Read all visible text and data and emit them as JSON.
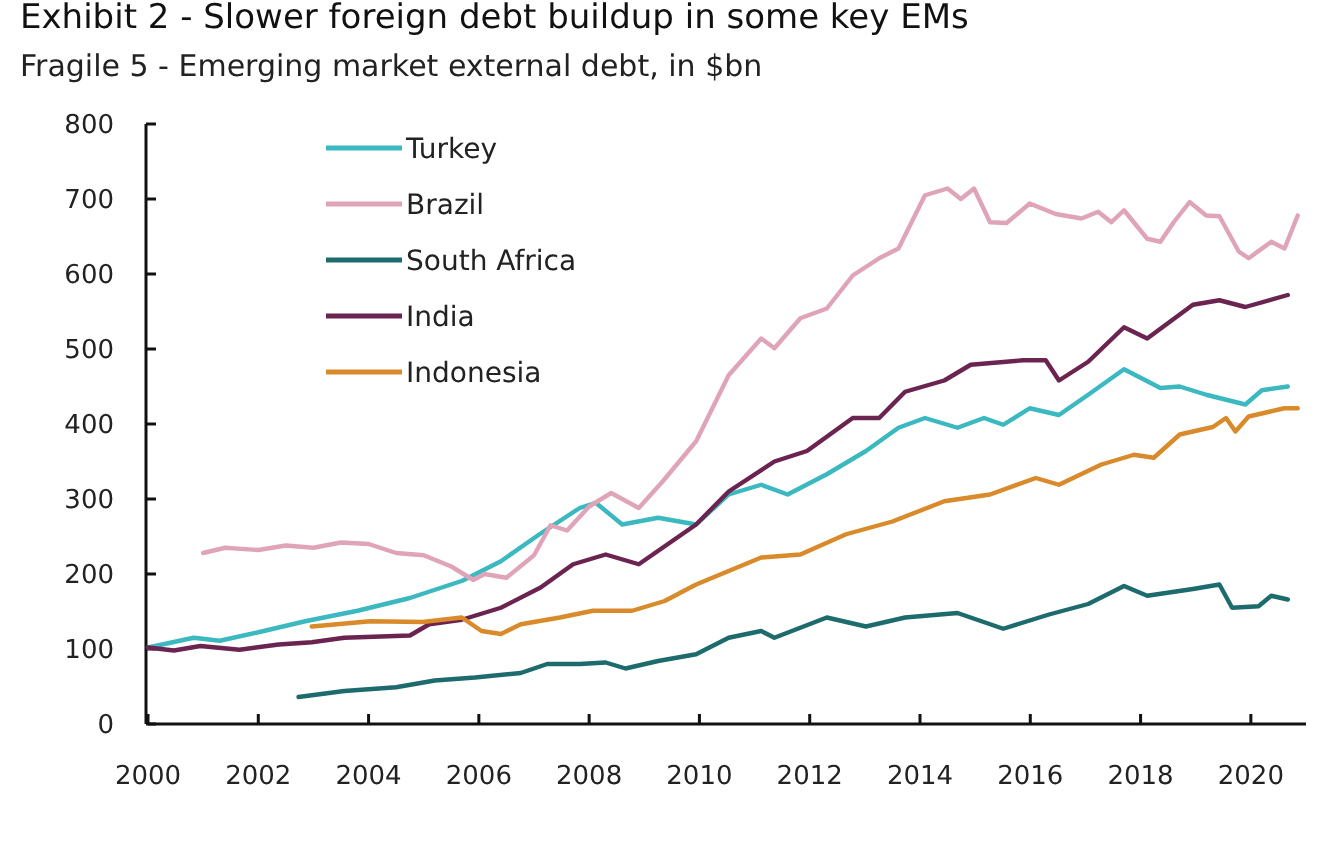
{
  "chart_data": {
    "type": "line",
    "title": "Exhibit 2 - Slower foreign debt buildup in some key EMs",
    "subtitle": "Fragile 5 - Emerging market external debt, in $bn",
    "xlim": [
      2000,
      2021
    ],
    "xticks": [
      2000,
      2002,
      2004,
      2006,
      2008,
      2010,
      2012,
      2014,
      2016,
      2018,
      2020
    ],
    "ylim": [
      0,
      800
    ],
    "yticks": [
      0,
      100,
      200,
      300,
      400,
      500,
      600,
      700,
      800
    ],
    "grid": false,
    "legend": "top left",
    "series": [
      {
        "name": "Turkey",
        "color": "#3bb8c0",
        "x": [
          2000,
          2000.83,
          2001.3,
          2002.1,
          2002.85,
          2003.8,
          2004.75,
          2005.7,
          2006.4,
          2007.1,
          2007.83,
          2008.12,
          2008.6,
          2009.25,
          2009.94,
          2010.53,
          2011.12,
          2011.6,
          2012.31,
          2013.02,
          2013.61,
          2014.09,
          2014.68,
          2015.16,
          2015.51,
          2015.99,
          2016.52,
          2017.05,
          2017.7,
          2018.36,
          2018.71,
          2019.19,
          2019.9,
          2020.2,
          2020.67
        ],
        "values": [
          102,
          115,
          111,
          124,
          137,
          151,
          168,
          191,
          217,
          253,
          288,
          295,
          266,
          275,
          266,
          306,
          319,
          306,
          333,
          364,
          395,
          408,
          395,
          408,
          399,
          421,
          412,
          439,
          473,
          448,
          450,
          439,
          426,
          445,
          450
        ]
      },
      {
        "name": "Brazil",
        "color": "#e0a4b8",
        "x": [
          2001,
          2001.4,
          2002,
          2002.5,
          2003,
          2003.5,
          2004,
          2004.5,
          2005,
          2005.5,
          2005.9,
          2006.1,
          2006.5,
          2007,
          2007.3,
          2007.6,
          2008,
          2008.4,
          2008.9,
          2009.34,
          2009.94,
          2010.53,
          2011.12,
          2011.36,
          2011.83,
          2012.31,
          2012.78,
          2013.26,
          2013.61,
          2014.09,
          2014.5,
          2014.74,
          2014.98,
          2015.27,
          2015.57,
          2015.99,
          2016.46,
          2016.93,
          2017.23,
          2017.47,
          2017.7,
          2018.12,
          2018.36,
          2018.6,
          2018.89,
          2019.19,
          2019.43,
          2019.78,
          2019.96,
          2020.37,
          2020.61,
          2020.85
        ],
        "values": [
          228,
          235,
          232,
          238,
          235,
          242,
          240,
          228,
          225,
          210,
          192,
          200,
          195,
          225,
          265,
          258,
          290,
          308,
          288,
          324,
          377,
          465,
          514,
          501,
          541,
          554,
          598,
          621,
          634,
          705,
          714,
          700,
          714,
          669,
          668,
          694,
          680,
          674,
          683,
          669,
          685,
          647,
          643,
          669,
          696,
          678,
          677,
          630,
          621,
          643,
          634,
          678
        ]
      },
      {
        "name": "South Africa",
        "color": "#1e6b6e",
        "x": [
          2002.73,
          2003.56,
          2004.5,
          2005.2,
          2005.93,
          2006.76,
          2007.24,
          2007.83,
          2008.3,
          2008.66,
          2009.25,
          2009.94,
          2010.53,
          2011.12,
          2011.36,
          2012.31,
          2013.02,
          2013.73,
          2014.68,
          2015.51,
          2016.34,
          2017.05,
          2017.7,
          2018.12,
          2018.95,
          2019.43,
          2019.66,
          2020.14,
          2020.37,
          2020.67
        ],
        "values": [
          36,
          44,
          49,
          58,
          62,
          68,
          80,
          80,
          82,
          74,
          84,
          93,
          115,
          124,
          115,
          142,
          130,
          142,
          148,
          127,
          146,
          160,
          184,
          171,
          180,
          186,
          155,
          157,
          171,
          166
        ]
      },
      {
        "name": "India",
        "color": "#6b2450",
        "x": [
          2000,
          2000.47,
          2000.95,
          2001.66,
          2002.37,
          2002.97,
          2003.56,
          2004.75,
          2005.1,
          2005.69,
          2006.4,
          2007.12,
          2007.71,
          2008.3,
          2008.9,
          2009.94,
          2010.53,
          2011.36,
          2011.95,
          2012.78,
          2013.26,
          2013.73,
          2014.44,
          2014.92,
          2015.87,
          2016.28,
          2016.52,
          2017.05,
          2017.7,
          2018.12,
          2018.95,
          2019.43,
          2019.9,
          2020.67
        ],
        "values": [
          102,
          98,
          104,
          99,
          106,
          109,
          115,
          118,
          133,
          139,
          155,
          182,
          213,
          226,
          213,
          266,
          310,
          350,
          364,
          408,
          408,
          443,
          458,
          479,
          485,
          485,
          458,
          483,
          529,
          514,
          559,
          565,
          556,
          572
        ]
      },
      {
        "name": "Indonesia",
        "color": "#d98a2a",
        "x": [
          2002.97,
          2004.03,
          2004.98,
          2005.69,
          2006.05,
          2006.4,
          2006.76,
          2007.47,
          2008.07,
          2008.78,
          2009.37,
          2009.94,
          2011.12,
          2011.83,
          2012.66,
          2013.5,
          2014.44,
          2015.27,
          2016.1,
          2016.52,
          2017.29,
          2017.88,
          2018.24,
          2018.71,
          2019.31,
          2019.55,
          2019.72,
          2019.96,
          2020.61,
          2020.85
        ],
        "values": [
          130,
          137,
          136,
          142,
          124,
          120,
          133,
          142,
          151,
          151,
          164,
          186,
          222,
          226,
          253,
          270,
          297,
          306,
          328,
          319,
          346,
          359,
          355,
          386,
          396,
          408,
          390,
          410,
          421,
          421
        ]
      }
    ]
  }
}
